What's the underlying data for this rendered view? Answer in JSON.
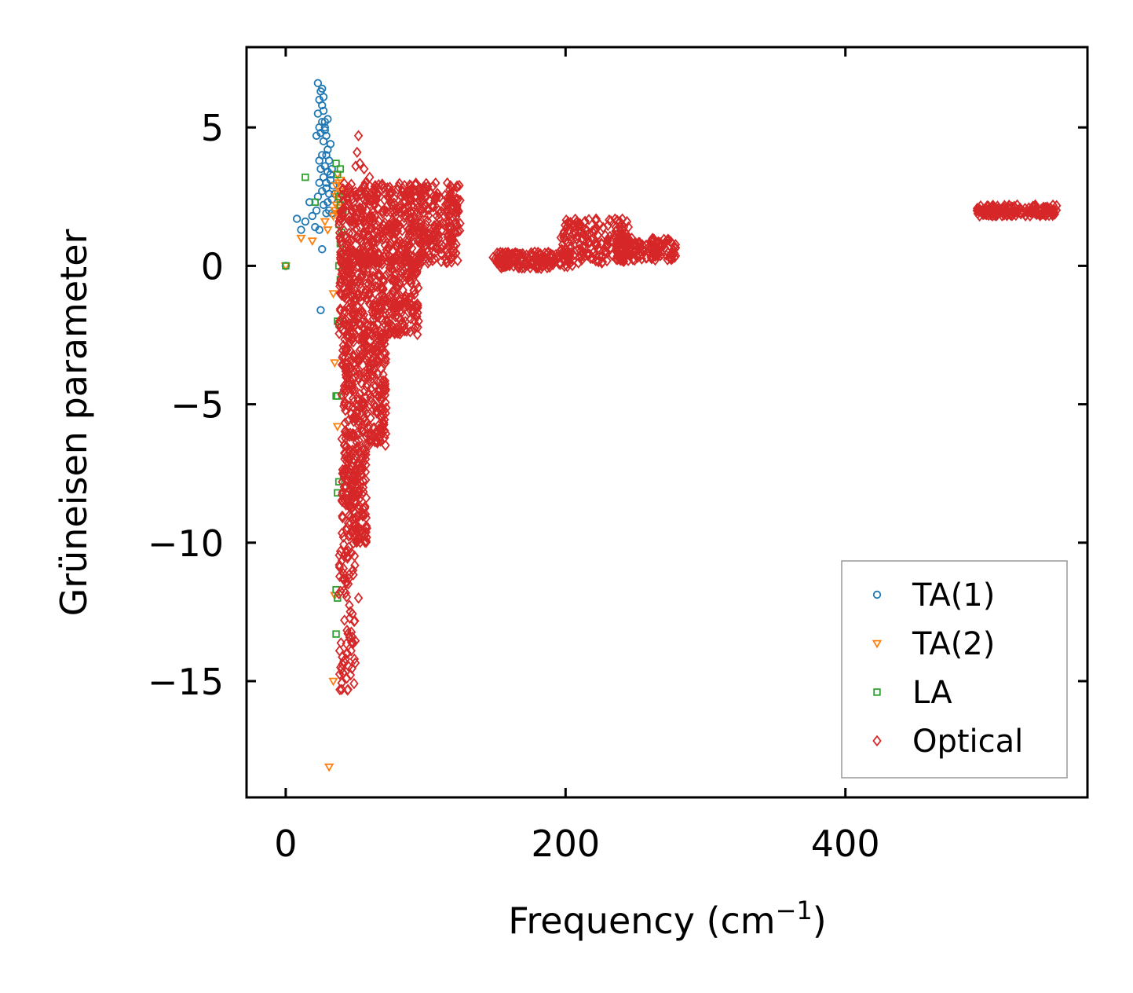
{
  "chart_data": {
    "type": "scatter",
    "title": "",
    "xlabel": "Frequency (cm",
    "xlabel_sup": "−1",
    "xlabel_end": ")",
    "ylabel": "Grüneisen parameter",
    "xlim": [
      -28,
      573
    ],
    "ylim": [
      -19.2,
      7.9
    ],
    "xticks": [
      0,
      200,
      400
    ],
    "xtick_labels": [
      "0",
      "200",
      "400"
    ],
    "yticks": [
      5,
      0,
      -5,
      -10,
      -15
    ],
    "ytick_labels": [
      "5",
      "0",
      "−5",
      "−10",
      "−15"
    ],
    "grid": false,
    "legend_position": "lower-right",
    "series": [
      {
        "name": "TA(1)",
        "marker": "circle",
        "color": "#1f77b4",
        "points": [
          [
            0,
            0
          ],
          [
            8,
            1.7
          ],
          [
            11,
            1.3
          ],
          [
            14,
            1.6
          ],
          [
            17,
            2.3
          ],
          [
            19,
            1.8
          ],
          [
            21,
            1.4
          ],
          [
            22,
            2.0
          ],
          [
            24,
            1.3
          ],
          [
            26,
            0.6
          ],
          [
            25,
            -1.6
          ],
          [
            23,
            2.5
          ],
          [
            24,
            3.0
          ],
          [
            25,
            3.5
          ],
          [
            26,
            4.0
          ],
          [
            27,
            4.5
          ],
          [
            28,
            5.0
          ],
          [
            23,
            5.5
          ],
          [
            24,
            6.0
          ],
          [
            25,
            6.3
          ],
          [
            23,
            6.6
          ],
          [
            26,
            6.4
          ],
          [
            27,
            6.1
          ],
          [
            28,
            5.2
          ],
          [
            29,
            4.7
          ],
          [
            30,
            4.2
          ],
          [
            31,
            3.8
          ],
          [
            30,
            3.4
          ],
          [
            32,
            3.1
          ],
          [
            29,
            2.8
          ],
          [
            31,
            2.6
          ],
          [
            33,
            2.4
          ],
          [
            27,
            2.2
          ],
          [
            29,
            1.9
          ],
          [
            25,
            4.8
          ],
          [
            26,
            5.8
          ],
          [
            24,
            5.0
          ],
          [
            22,
            4.7
          ],
          [
            28,
            3.6
          ],
          [
            32,
            4.4
          ],
          [
            30,
            5.3
          ],
          [
            27,
            3.2
          ],
          [
            31,
            2.0
          ],
          [
            34,
            2.9
          ],
          [
            33,
            3.5
          ],
          [
            26,
            2.7
          ],
          [
            29,
            4.0
          ],
          [
            24,
            3.8
          ],
          [
            28,
            4.9
          ],
          [
            32,
            3.3
          ],
          [
            35,
            2.6
          ],
          [
            33,
            1.9
          ],
          [
            30,
            2.3
          ],
          [
            27,
            5.6
          ],
          [
            26,
            5.2
          ],
          [
            29,
            3.0
          ]
        ]
      },
      {
        "name": "TA(2)",
        "marker": "triangle",
        "color": "#ff7f0e",
        "points": [
          [
            0,
            0
          ],
          [
            11,
            1.0
          ],
          [
            19,
            0.9
          ],
          [
            28,
            1.6
          ],
          [
            30,
            1.3
          ],
          [
            34,
            1.8
          ],
          [
            36,
            2.2
          ],
          [
            37,
            2.6
          ],
          [
            38,
            3.0
          ],
          [
            36,
            2.9
          ],
          [
            38,
            2.4
          ],
          [
            35,
            2.0
          ],
          [
            39,
            2.7
          ],
          [
            37,
            3.3
          ],
          [
            34,
            -1.0
          ],
          [
            35,
            -3.5
          ],
          [
            37,
            -5.8
          ],
          [
            35,
            -11.9
          ],
          [
            34,
            -15.0
          ],
          [
            31,
            -18.1
          ],
          [
            36,
            2.5
          ],
          [
            38,
            2.1
          ],
          [
            39,
            3.1
          ],
          [
            37,
            1.9
          ]
        ]
      },
      {
        "name": "LA",
        "marker": "square",
        "color": "#2ca02c",
        "points": [
          [
            0,
            0
          ],
          [
            14,
            3.2
          ],
          [
            21,
            2.3
          ],
          [
            36,
            3.7
          ],
          [
            37,
            3.3
          ],
          [
            38,
            2.5
          ],
          [
            39,
            2.2
          ],
          [
            40,
            1.9
          ],
          [
            38,
            1.5
          ],
          [
            39,
            0.8
          ],
          [
            40,
            0.4
          ],
          [
            38,
            0.0
          ],
          [
            39,
            -0.5
          ],
          [
            37,
            -2.0
          ],
          [
            38,
            -2.1
          ],
          [
            36,
            -4.7
          ],
          [
            37,
            -4.7
          ],
          [
            38,
            -7.8
          ],
          [
            37,
            -8.2
          ],
          [
            36,
            -11.7
          ],
          [
            37,
            -12.0
          ],
          [
            36,
            -13.3
          ],
          [
            40,
            1.2
          ],
          [
            41,
            2.0
          ],
          [
            39,
            3.5
          ]
        ]
      },
      {
        "name": "Optical",
        "marker": "diamond",
        "color": "#d62728",
        "clusters": [
          {
            "x": [
              38,
              125
            ],
            "y": [
              0.1,
              3.0
            ],
            "n": 600
          },
          {
            "x": [
              38,
              95
            ],
            "y": [
              -2.5,
              0.5
            ],
            "n": 400
          },
          {
            "x": [
              40,
              72
            ],
            "y": [
              -6.5,
              -2.5
            ],
            "n": 300
          },
          {
            "x": [
              40,
              58
            ],
            "y": [
              -10,
              -6.5
            ],
            "n": 180
          },
          {
            "x": [
              38,
              50
            ],
            "y": [
              -15.4,
              -10
            ],
            "n": 70
          },
          {
            "x": [
              148,
              205
            ],
            "y": [
              -0.1,
              0.5
            ],
            "n": 160
          },
          {
            "x": [
              196,
              245
            ],
            "y": [
              0.1,
              1.7
            ],
            "n": 180
          },
          {
            "x": [
              236,
              279
            ],
            "y": [
              0.2,
              1.0
            ],
            "n": 150
          },
          {
            "x": [
              494,
              551
            ],
            "y": [
              1.8,
              2.2
            ],
            "n": 160
          }
        ],
        "points": [
          [
            52,
            4.7
          ],
          [
            51,
            4.1
          ],
          [
            53,
            3.7
          ],
          [
            56,
            3.5
          ],
          [
            60,
            3.2
          ],
          [
            50,
            3.6
          ],
          [
            57,
            3.0
          ],
          [
            64,
            2.9
          ],
          [
            70,
            2.8
          ],
          [
            88,
            2.5
          ],
          [
            93,
            -1.8
          ],
          [
            90,
            -1.4
          ],
          [
            52,
            -12.0
          ],
          [
            47,
            -13.6
          ],
          [
            44,
            -14.0
          ],
          [
            41,
            -14.7
          ],
          [
            40,
            -15.3
          ],
          [
            42,
            -12.8
          ],
          [
            45,
            -11.3
          ],
          [
            48,
            -11.0
          ],
          [
            55,
            -9.0
          ],
          [
            50,
            -9.5
          ]
        ]
      }
    ]
  }
}
